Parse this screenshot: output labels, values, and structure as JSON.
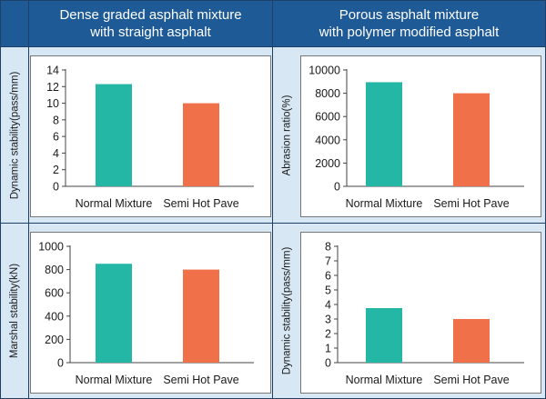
{
  "columns": [
    {
      "title_line1": "Dense graded asphalt mixture",
      "title_line2": "with straight asphalt"
    },
    {
      "title_line1": "Porous asphalt mixture",
      "title_line2": "with polymer modified asphalt"
    }
  ],
  "colors": {
    "normal": "#25b7a6",
    "semi_hot": "#f07149",
    "header_bg": "#1e5a96",
    "cell_bg": "#d7e7f3"
  },
  "chart_data": [
    {
      "type": "bar",
      "ylabel": "Dynamic stability(pass/mm)",
      "categories": [
        "Normal Mixture",
        "Semi Hot Pave"
      ],
      "values": [
        12.3,
        10.0
      ],
      "ylim": [
        0,
        14
      ],
      "yticks": [
        "0",
        "2",
        "4",
        "6",
        "8",
        "10",
        "12",
        "14"
      ]
    },
    {
      "type": "bar",
      "ylabel": "Abrasion ratio(%)",
      "categories": [
        "Normal Mixture",
        "Semi Hot Pave"
      ],
      "values": [
        8950,
        8000
      ],
      "ylim": [
        0,
        10000
      ],
      "yticks": [
        "0",
        "2000",
        "4000",
        "6000",
        "8000",
        "10000"
      ]
    },
    {
      "type": "bar",
      "ylabel": "Marshal stability(kN)",
      "categories": [
        "Normal Mixture",
        "Semi Hot Pave"
      ],
      "values": [
        850,
        800
      ],
      "ylim": [
        0,
        1000
      ],
      "yticks": [
        "0",
        "200",
        "400",
        "600",
        "800",
        "1000"
      ]
    },
    {
      "type": "bar",
      "ylabel": "Dynamic stability(pass/mm)",
      "categories": [
        "Normal Mixture",
        "Semi Hot Pave"
      ],
      "values": [
        3.75,
        3.0
      ],
      "ylim": [
        0,
        8
      ],
      "yticks": [
        "0",
        "1",
        "2",
        "3",
        "4",
        "5",
        "6",
        "7",
        "8"
      ]
    }
  ]
}
